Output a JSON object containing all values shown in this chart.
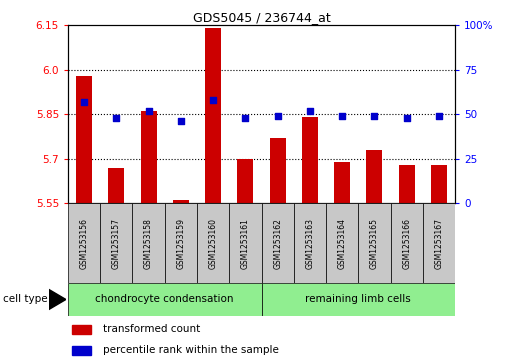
{
  "title": "GDS5045 / 236744_at",
  "samples": [
    "GSM1253156",
    "GSM1253157",
    "GSM1253158",
    "GSM1253159",
    "GSM1253160",
    "GSM1253161",
    "GSM1253162",
    "GSM1253163",
    "GSM1253164",
    "GSM1253165",
    "GSM1253166",
    "GSM1253167"
  ],
  "transformed_count": [
    5.98,
    5.67,
    5.86,
    5.56,
    6.14,
    5.7,
    5.77,
    5.84,
    5.69,
    5.73,
    5.68,
    5.68
  ],
  "percentile_rank": [
    57,
    48,
    52,
    46,
    58,
    48,
    49,
    52,
    49,
    49,
    48,
    49
  ],
  "ylim_left": [
    5.55,
    6.15
  ],
  "ylim_right": [
    0,
    100
  ],
  "yticks_left": [
    5.55,
    5.7,
    5.85,
    6.0,
    6.15
  ],
  "yticks_right": [
    0,
    25,
    50,
    75,
    100
  ],
  "hlines": [
    5.7,
    5.85,
    6.0
  ],
  "bar_color": "#cc0000",
  "dot_color": "#0000cc",
  "bar_width": 0.5,
  "cell_types": [
    "chondrocyte condensation",
    "remaining limb cells"
  ],
  "cell_type_split": 6,
  "cell_type_color": "#90ee90",
  "tick_bg_color": "#c8c8c8",
  "cell_type_label": "cell type",
  "legend_tc": "transformed count",
  "legend_pr": "percentile rank within the sample"
}
